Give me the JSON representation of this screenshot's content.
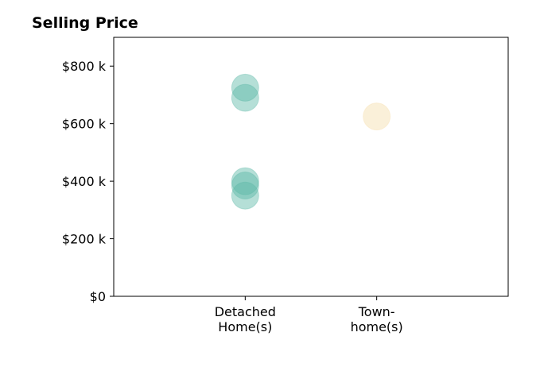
{
  "chart_data": {
    "type": "scatter",
    "title": "Selling Price",
    "xlabel": "",
    "ylabel": "",
    "categories": [
      "Detached\nHome(s)",
      "Town-\nhome(s)"
    ],
    "xlim": [
      -1,
      2
    ],
    "ylim": [
      0,
      900000
    ],
    "yticks": [
      0,
      200000,
      400000,
      600000,
      800000
    ],
    "ytick_labels": [
      "$0",
      "$200 k",
      "$400 k",
      "$600 k",
      "$800 k"
    ],
    "grid": false,
    "series": [
      {
        "category": "Detached\nHome(s)",
        "color": "#5bb8a6",
        "values": [
          725000,
          690000,
          400000,
          385000,
          350000
        ]
      },
      {
        "category": "Town-\nhome(s)",
        "color": "#f5deaa",
        "values": [
          625000
        ]
      }
    ]
  }
}
